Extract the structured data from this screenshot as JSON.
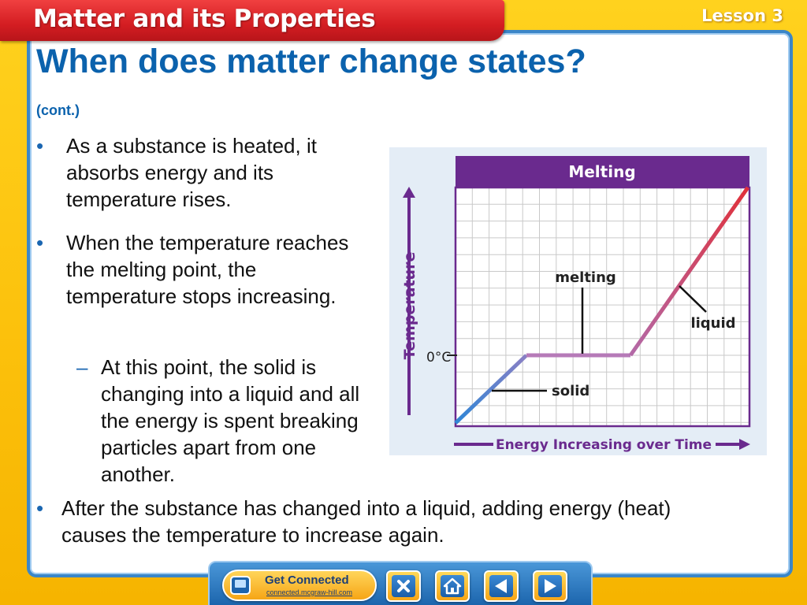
{
  "header": {
    "title": "Matter and its Properties",
    "lesson": "Lesson 3"
  },
  "slide": {
    "title": "When does matter change states?",
    "subtitle": "(cont.)",
    "bullets": [
      "As a substance is heated, it absorbs energy and its temperature rises.",
      "When the temperature reaches the melting point, the temperature stops increasing."
    ],
    "sub_bullet": "At this point, the solid is changing into a liquid and all the energy is spent breaking particles apart from one another.",
    "last_bullet": "After the substance has changed into a liquid, adding energy (heat) causes the temperature to increase again.",
    "bullet_symbol": "•",
    "dash_symbol": "–"
  },
  "chart_data": {
    "type": "line",
    "title": "Melting",
    "xlabel": "Energy Increasing over Time",
    "ylabel": "Temperature",
    "y_marker": "0°C",
    "grid": true,
    "annotations": [
      "melting",
      "liquid",
      "solid"
    ],
    "segments": [
      {
        "label": "solid",
        "shape": "rising"
      },
      {
        "label": "melting",
        "shape": "flat"
      },
      {
        "label": "liquid",
        "shape": "rising"
      }
    ],
    "colors": {
      "title_bar": "#6a2a8e",
      "solid": "#3a7dc8",
      "melting": "#b876b8",
      "liquid": "#d9363e",
      "axis": "#6a2a8e"
    }
  },
  "footer": {
    "get_connected_title": "Get Connected",
    "get_connected_url": "connected.mcgraw-hill.com",
    "buttons": [
      "close-icon",
      "home-icon",
      "previous-icon",
      "next-icon"
    ]
  },
  "colors": {
    "title_blue": "#0b62ad",
    "header_red": "#d41d22",
    "background_yellow": "#fcc10c",
    "panel_border": "#3b86c8"
  }
}
